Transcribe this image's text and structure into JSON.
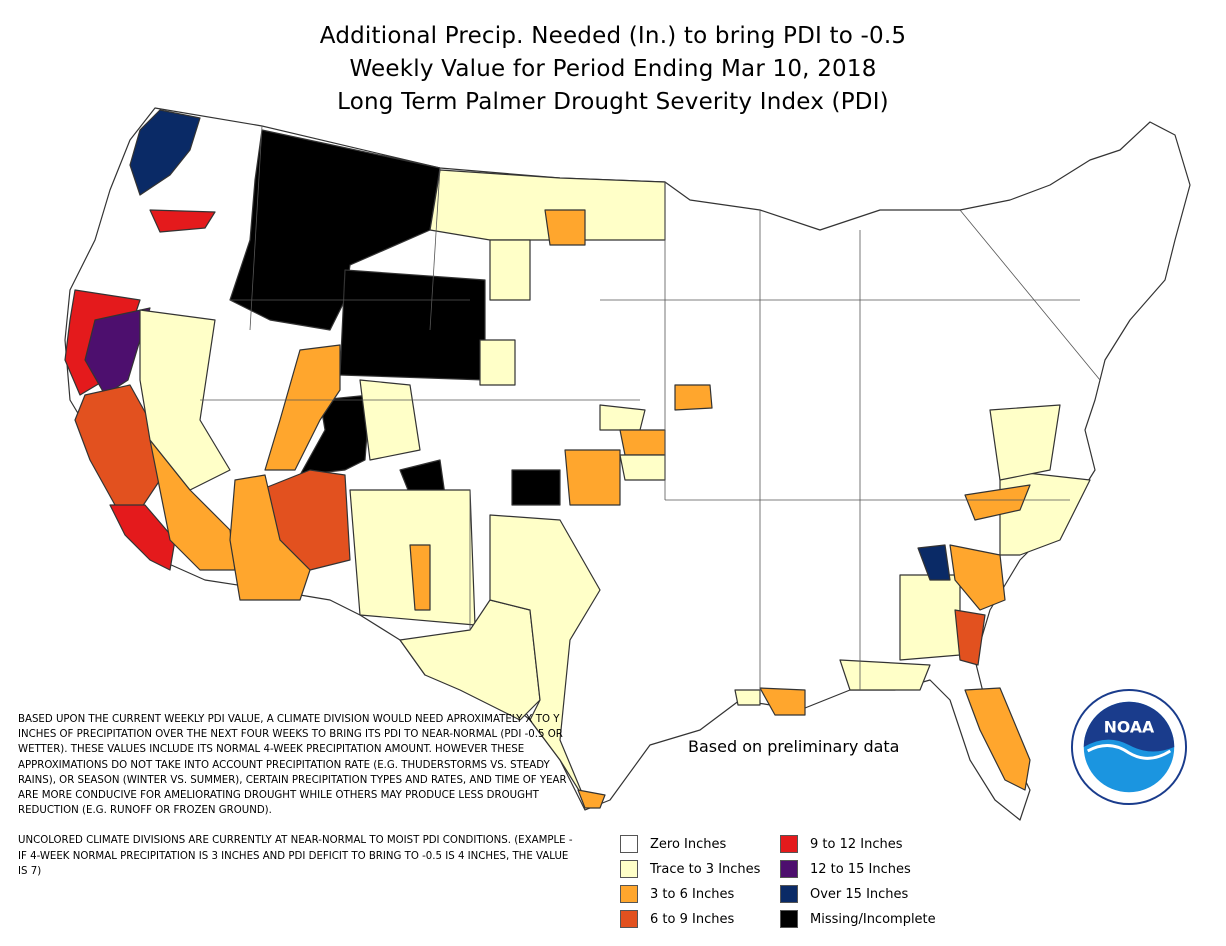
{
  "title": {
    "line1": "Additional Precip. Needed (In.) to bring PDI to -0.5",
    "line2": "Weekly Value for Period Ending Mar 10, 2018",
    "line3": "Long Term Palmer Drought Severity Index (PDI)"
  },
  "prelim_note": "Based on preliminary data",
  "notes": {
    "para1": "BASED UPON THE CURRENT WEEKLY PDI VALUE, A CLIMATE DIVISION WOULD NEED APROXIMATELY X TO Y INCHES OF PRECIPITATION OVER THE NEXT FOUR WEEKS TO BRING ITS PDI TO NEAR-NORMAL (PDI -0.5 OR WETTER). THESE VALUES INCLUDE ITS NORMAL 4-WEEK PRECIPITATION AMOUNT. HOWEVER THESE APPROXIMATIONS DO NOT TAKE INTO ACCOUNT PRECIPITATION RATE (E.G. THUDERSTORMS VS. STEADY RAINS), OR SEASON (WINTER VS. SUMMER), CERTAIN PRECIPITATION TYPES AND RATES, AND TIME OF YEAR ARE MORE CONDUCIVE FOR AMELIORATING DROUGHT WHILE OTHERS MAY PRODUCE LESS DROUGHT REDUCTION (E.G. RUNOFF OR FROZEN GROUND).",
    "para2": "UNCOLORED CLIMATE DIVISIONS ARE CURRENTLY AT NEAR-NORMAL TO MOIST PDI CONDITIONS. (EXAMPLE - IF 4-WEEK NORMAL PRECIPITATION IS 3 INCHES AND PDI DEFICIT TO BRING TO -0.5 IS 4 INCHES, THE VALUE IS 7)"
  },
  "legend": [
    {
      "label": "Zero Inches",
      "color": "#ffffff"
    },
    {
      "label": "Trace to 3 Inches",
      "color": "#ffffc8"
    },
    {
      "label": "3 to 6 Inches",
      "color": "#ffa62d"
    },
    {
      "label": "6 to 9 Inches",
      "color": "#e2511f"
    },
    {
      "label": "9 to 12 Inches",
      "color": "#e41a1c"
    },
    {
      "label": "12 to 15 Inches",
      "color": "#4d0f6e"
    },
    {
      "label": "Over 15 Inches",
      "color": "#0a2a66"
    },
    {
      "label": "Missing/Incomplete",
      "color": "#000000"
    }
  ],
  "logo": {
    "text": "NOAA"
  }
}
